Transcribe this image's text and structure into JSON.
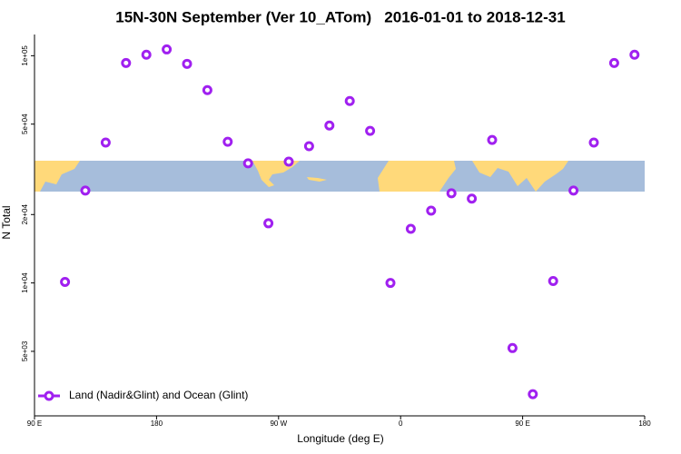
{
  "chart_data": {
    "type": "scatter",
    "title": "15N-30N September (Ver 10_ATom)   2016-01-01 to 2018-12-31",
    "x_label": "Longitude (deg E)",
    "y_label": "N Total",
    "log_y": true,
    "xlim": [
      90,
      540
    ],
    "ylim": [
      2600,
      124000
    ],
    "xticks": [
      {
        "value": 90,
        "label": "90 E"
      },
      {
        "value": 180,
        "label": "180"
      },
      {
        "value": 270,
        "label": "90 W"
      },
      {
        "value": 360,
        "label": "0"
      },
      {
        "value": 450,
        "label": "90 E"
      },
      {
        "value": 540,
        "label": "180"
      }
    ],
    "yticks": [
      {
        "value": 5000,
        "label": "5e+03"
      },
      {
        "value": 10000,
        "label": "1e+04"
      },
      {
        "value": 20000,
        "label": "2e+04"
      },
      {
        "value": 50000,
        "label": "5e+04"
      },
      {
        "value": 100000,
        "label": "1e+05"
      }
    ],
    "legend": "bottom-left",
    "series": [
      {
        "name": "Land (Nadir&Glint) and Ocean (Glint)",
        "color": "#a020f0",
        "x": [
          112.5,
          127.5,
          142.5,
          157.5,
          172.5,
          187.5,
          202.5,
          217.5,
          232.5,
          247.5,
          262.5,
          277.5,
          292.5,
          307.5,
          322.5,
          337.5,
          352.5,
          367.5,
          382.5,
          397.5,
          412.5,
          427.5,
          442.5,
          457.5,
          472.5,
          487.5,
          502.5,
          517.5,
          532.5
        ],
        "values": [
          10100,
          25500,
          41500,
          92900,
          101000,
          106600,
          92100,
          70600,
          41800,
          33600,
          18300,
          34200,
          40000,
          49300,
          63200,
          46700,
          10000,
          17300,
          20800,
          24800,
          23500,
          42600,
          5170,
          3240,
          10200,
          25500,
          41500,
          92900,
          101000
        ]
      }
    ]
  }
}
